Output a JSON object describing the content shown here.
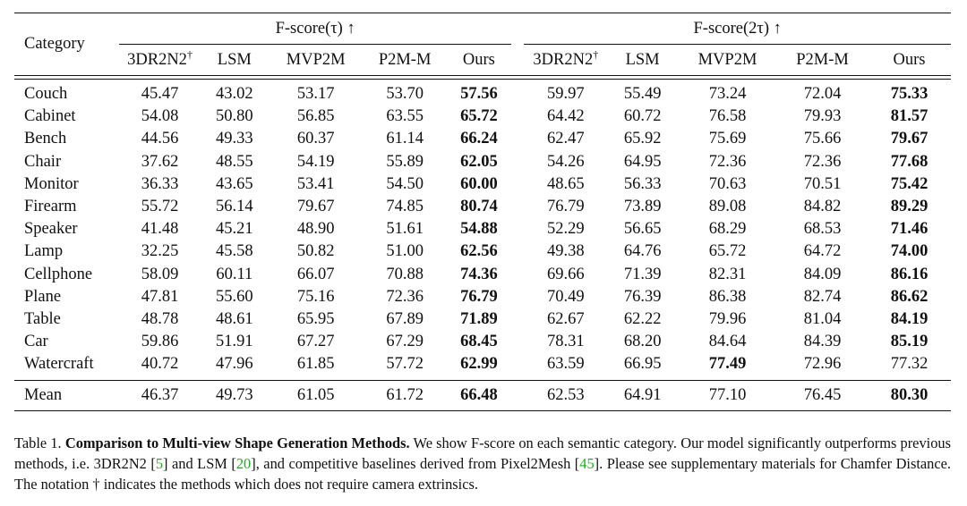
{
  "table": {
    "category_header": "Category",
    "groups": [
      {
        "label": "F-score(τ) ↑"
      },
      {
        "label": "F-score(2τ) ↑"
      }
    ],
    "methods": [
      "3DR2N2",
      "LSM",
      "MVP2M",
      "P2M-M",
      "Ours"
    ],
    "dagger": "†",
    "rows": [
      {
        "category": "Couch",
        "tau": [
          "45.47",
          "43.02",
          "53.17",
          "53.70",
          "57.56"
        ],
        "tau_bold": 4,
        "two_tau": [
          "59.97",
          "55.49",
          "73.24",
          "72.04",
          "75.33"
        ],
        "two_tau_bold": 4
      },
      {
        "category": "Cabinet",
        "tau": [
          "54.08",
          "50.80",
          "56.85",
          "63.55",
          "65.72"
        ],
        "tau_bold": 4,
        "two_tau": [
          "64.42",
          "60.72",
          "76.58",
          "79.93",
          "81.57"
        ],
        "two_tau_bold": 4
      },
      {
        "category": "Bench",
        "tau": [
          "44.56",
          "49.33",
          "60.37",
          "61.14",
          "66.24"
        ],
        "tau_bold": 4,
        "two_tau": [
          "62.47",
          "65.92",
          "75.69",
          "75.66",
          "79.67"
        ],
        "two_tau_bold": 4
      },
      {
        "category": "Chair",
        "tau": [
          "37.62",
          "48.55",
          "54.19",
          "55.89",
          "62.05"
        ],
        "tau_bold": 4,
        "two_tau": [
          "54.26",
          "64.95",
          "72.36",
          "72.36",
          "77.68"
        ],
        "two_tau_bold": 4
      },
      {
        "category": "Monitor",
        "tau": [
          "36.33",
          "43.65",
          "53.41",
          "54.50",
          "60.00"
        ],
        "tau_bold": 4,
        "two_tau": [
          "48.65",
          "56.33",
          "70.63",
          "70.51",
          "75.42"
        ],
        "two_tau_bold": 4
      },
      {
        "category": "Firearm",
        "tau": [
          "55.72",
          "56.14",
          "79.67",
          "74.85",
          "80.74"
        ],
        "tau_bold": 4,
        "two_tau": [
          "76.79",
          "73.89",
          "89.08",
          "84.82",
          "89.29"
        ],
        "two_tau_bold": 4
      },
      {
        "category": "Speaker",
        "tau": [
          "41.48",
          "45.21",
          "48.90",
          "51.61",
          "54.88"
        ],
        "tau_bold": 4,
        "two_tau": [
          "52.29",
          "56.65",
          "68.29",
          "68.53",
          "71.46"
        ],
        "two_tau_bold": 4
      },
      {
        "category": "Lamp",
        "tau": [
          "32.25",
          "45.58",
          "50.82",
          "51.00",
          "62.56"
        ],
        "tau_bold": 4,
        "two_tau": [
          "49.38",
          "64.76",
          "65.72",
          "64.72",
          "74.00"
        ],
        "two_tau_bold": 4
      },
      {
        "category": "Cellphone",
        "tau": [
          "58.09",
          "60.11",
          "66.07",
          "70.88",
          "74.36"
        ],
        "tau_bold": 4,
        "two_tau": [
          "69.66",
          "71.39",
          "82.31",
          "84.09",
          "86.16"
        ],
        "two_tau_bold": 4
      },
      {
        "category": "Plane",
        "tau": [
          "47.81",
          "55.60",
          "75.16",
          "72.36",
          "76.79"
        ],
        "tau_bold": 4,
        "two_tau": [
          "70.49",
          "76.39",
          "86.38",
          "82.74",
          "86.62"
        ],
        "two_tau_bold": 4
      },
      {
        "category": "Table",
        "tau": [
          "48.78",
          "48.61",
          "65.95",
          "67.89",
          "71.89"
        ],
        "tau_bold": 4,
        "two_tau": [
          "62.67",
          "62.22",
          "79.96",
          "81.04",
          "84.19"
        ],
        "two_tau_bold": 4
      },
      {
        "category": "Car",
        "tau": [
          "59.86",
          "51.91",
          "67.27",
          "67.29",
          "68.45"
        ],
        "tau_bold": 4,
        "two_tau": [
          "78.31",
          "68.20",
          "84.64",
          "84.39",
          "85.19"
        ],
        "two_tau_bold": 4
      },
      {
        "category": "Watercraft",
        "tau": [
          "40.72",
          "47.96",
          "61.85",
          "57.72",
          "62.99"
        ],
        "tau_bold": 4,
        "two_tau": [
          "63.59",
          "66.95",
          "77.49",
          "72.96",
          "77.32"
        ],
        "two_tau_bold": 2
      }
    ],
    "mean": {
      "category": "Mean",
      "tau": [
        "46.37",
        "49.73",
        "61.05",
        "61.72",
        "66.48"
      ],
      "tau_bold": 4,
      "two_tau": [
        "62.53",
        "64.91",
        "77.10",
        "76.45",
        "80.30"
      ],
      "two_tau_bold": 4
    }
  },
  "caption": {
    "label": "Table 1.",
    "title": "Comparison to Multi-view Shape Generation Methods.",
    "text_1": "We show F-score on each semantic category. Our model significantly outperforms previous methods, i.e.  3DR2N2 [",
    "cite_1": "5",
    "text_2": "] and LSM [",
    "cite_2": "20",
    "text_3": "], and competitive baselines derived from Pixel2Mesh [",
    "cite_3": "45",
    "text_4": "].  Please see supplementary materials for Chamfer Distance. The notation † indicates the methods which does not require camera extrinsics.",
    "cite_color": "#22aa22"
  }
}
